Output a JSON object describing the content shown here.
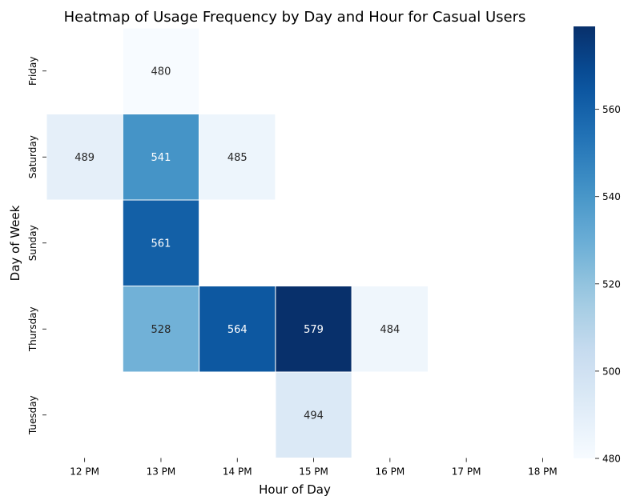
{
  "chart_data": {
    "type": "heatmap",
    "title": "Heatmap of Usage Frequency by Day and Hour for Casual Users",
    "xlabel": "Hour of Day",
    "ylabel": "Day of Week",
    "x_categories": [
      "12 PM",
      "13 PM",
      "14 PM",
      "15 PM",
      "16 PM",
      "17 PM",
      "18 PM"
    ],
    "y_categories": [
      "Friday",
      "Saturday",
      "Sunday",
      "Thursday",
      "Tuesday"
    ],
    "cells": [
      {
        "day": "Friday",
        "hour": "13 PM",
        "value": 480
      },
      {
        "day": "Saturday",
        "hour": "12 PM",
        "value": 489
      },
      {
        "day": "Saturday",
        "hour": "13 PM",
        "value": 541
      },
      {
        "day": "Saturday",
        "hour": "14 PM",
        "value": 485
      },
      {
        "day": "Sunday",
        "hour": "13 PM",
        "value": 561
      },
      {
        "day": "Thursday",
        "hour": "13 PM",
        "value": 528
      },
      {
        "day": "Thursday",
        "hour": "14 PM",
        "value": 564
      },
      {
        "day": "Thursday",
        "hour": "15 PM",
        "value": 579
      },
      {
        "day": "Thursday",
        "hour": "16 PM",
        "value": 484
      },
      {
        "day": "Tuesday",
        "hour": "15 PM",
        "value": 494
      }
    ],
    "colorbar": {
      "colormap": "Blues",
      "vmin": 480,
      "vmax": 579,
      "ticks": [
        480,
        500,
        520,
        540,
        560
      ]
    },
    "annotate": true,
    "grid": false
  }
}
